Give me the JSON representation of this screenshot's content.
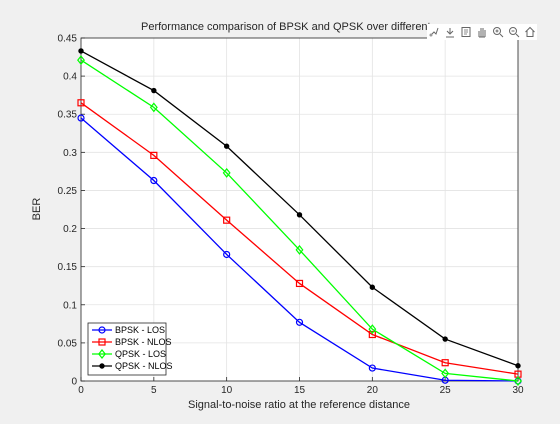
{
  "chart_data": {
    "type": "line",
    "title": "Performance comparison of BPSK and QPSK over different c",
    "xlabel": "Signal-to-noise ratio at the reference distance",
    "ylabel": "BER",
    "xlim": [
      0,
      30
    ],
    "ylim": [
      0,
      0.45
    ],
    "x_ticks": [
      0,
      5,
      10,
      15,
      20,
      25,
      30
    ],
    "y_ticks": [
      0,
      0.05,
      0.1,
      0.15,
      0.2,
      0.25,
      0.3,
      0.35,
      0.4,
      0.45
    ],
    "x_tick_labels": [
      "0",
      "5",
      "10",
      "15",
      "20",
      "25",
      "30"
    ],
    "y_tick_labels": [
      "0",
      "0.05",
      "0.1",
      "0.15",
      "0.2",
      "0.25",
      "0.3",
      "0.35",
      "0.4",
      "0.45"
    ],
    "grid": true,
    "legend_position": "bottom-left",
    "x": [
      0,
      5,
      10,
      15,
      20,
      25,
      30
    ],
    "series": [
      {
        "name": "BPSK - LOS",
        "color": "#0000ff",
        "marker": "circle",
        "values": [
          0.345,
          0.263,
          0.166,
          0.077,
          0.017,
          0.001,
          0.0
        ]
      },
      {
        "name": "BPSK - NLOS",
        "color": "#ff0000",
        "marker": "square",
        "values": [
          0.365,
          0.296,
          0.211,
          0.128,
          0.061,
          0.024,
          0.009
        ]
      },
      {
        "name": "QPSK - LOS",
        "color": "#00ff00",
        "marker": "diamond",
        "values": [
          0.421,
          0.359,
          0.273,
          0.172,
          0.068,
          0.01,
          0.0
        ]
      },
      {
        "name": "QPSK - NLOS",
        "color": "#000000",
        "marker": "dot",
        "values": [
          0.433,
          0.381,
          0.308,
          0.218,
          0.123,
          0.055,
          0.02
        ]
      }
    ]
  },
  "toolbar": {
    "icons": [
      "brush-icon",
      "export-icon",
      "datatips-icon",
      "pan-icon",
      "zoom-in-icon",
      "zoom-out-icon",
      "home-icon"
    ]
  }
}
